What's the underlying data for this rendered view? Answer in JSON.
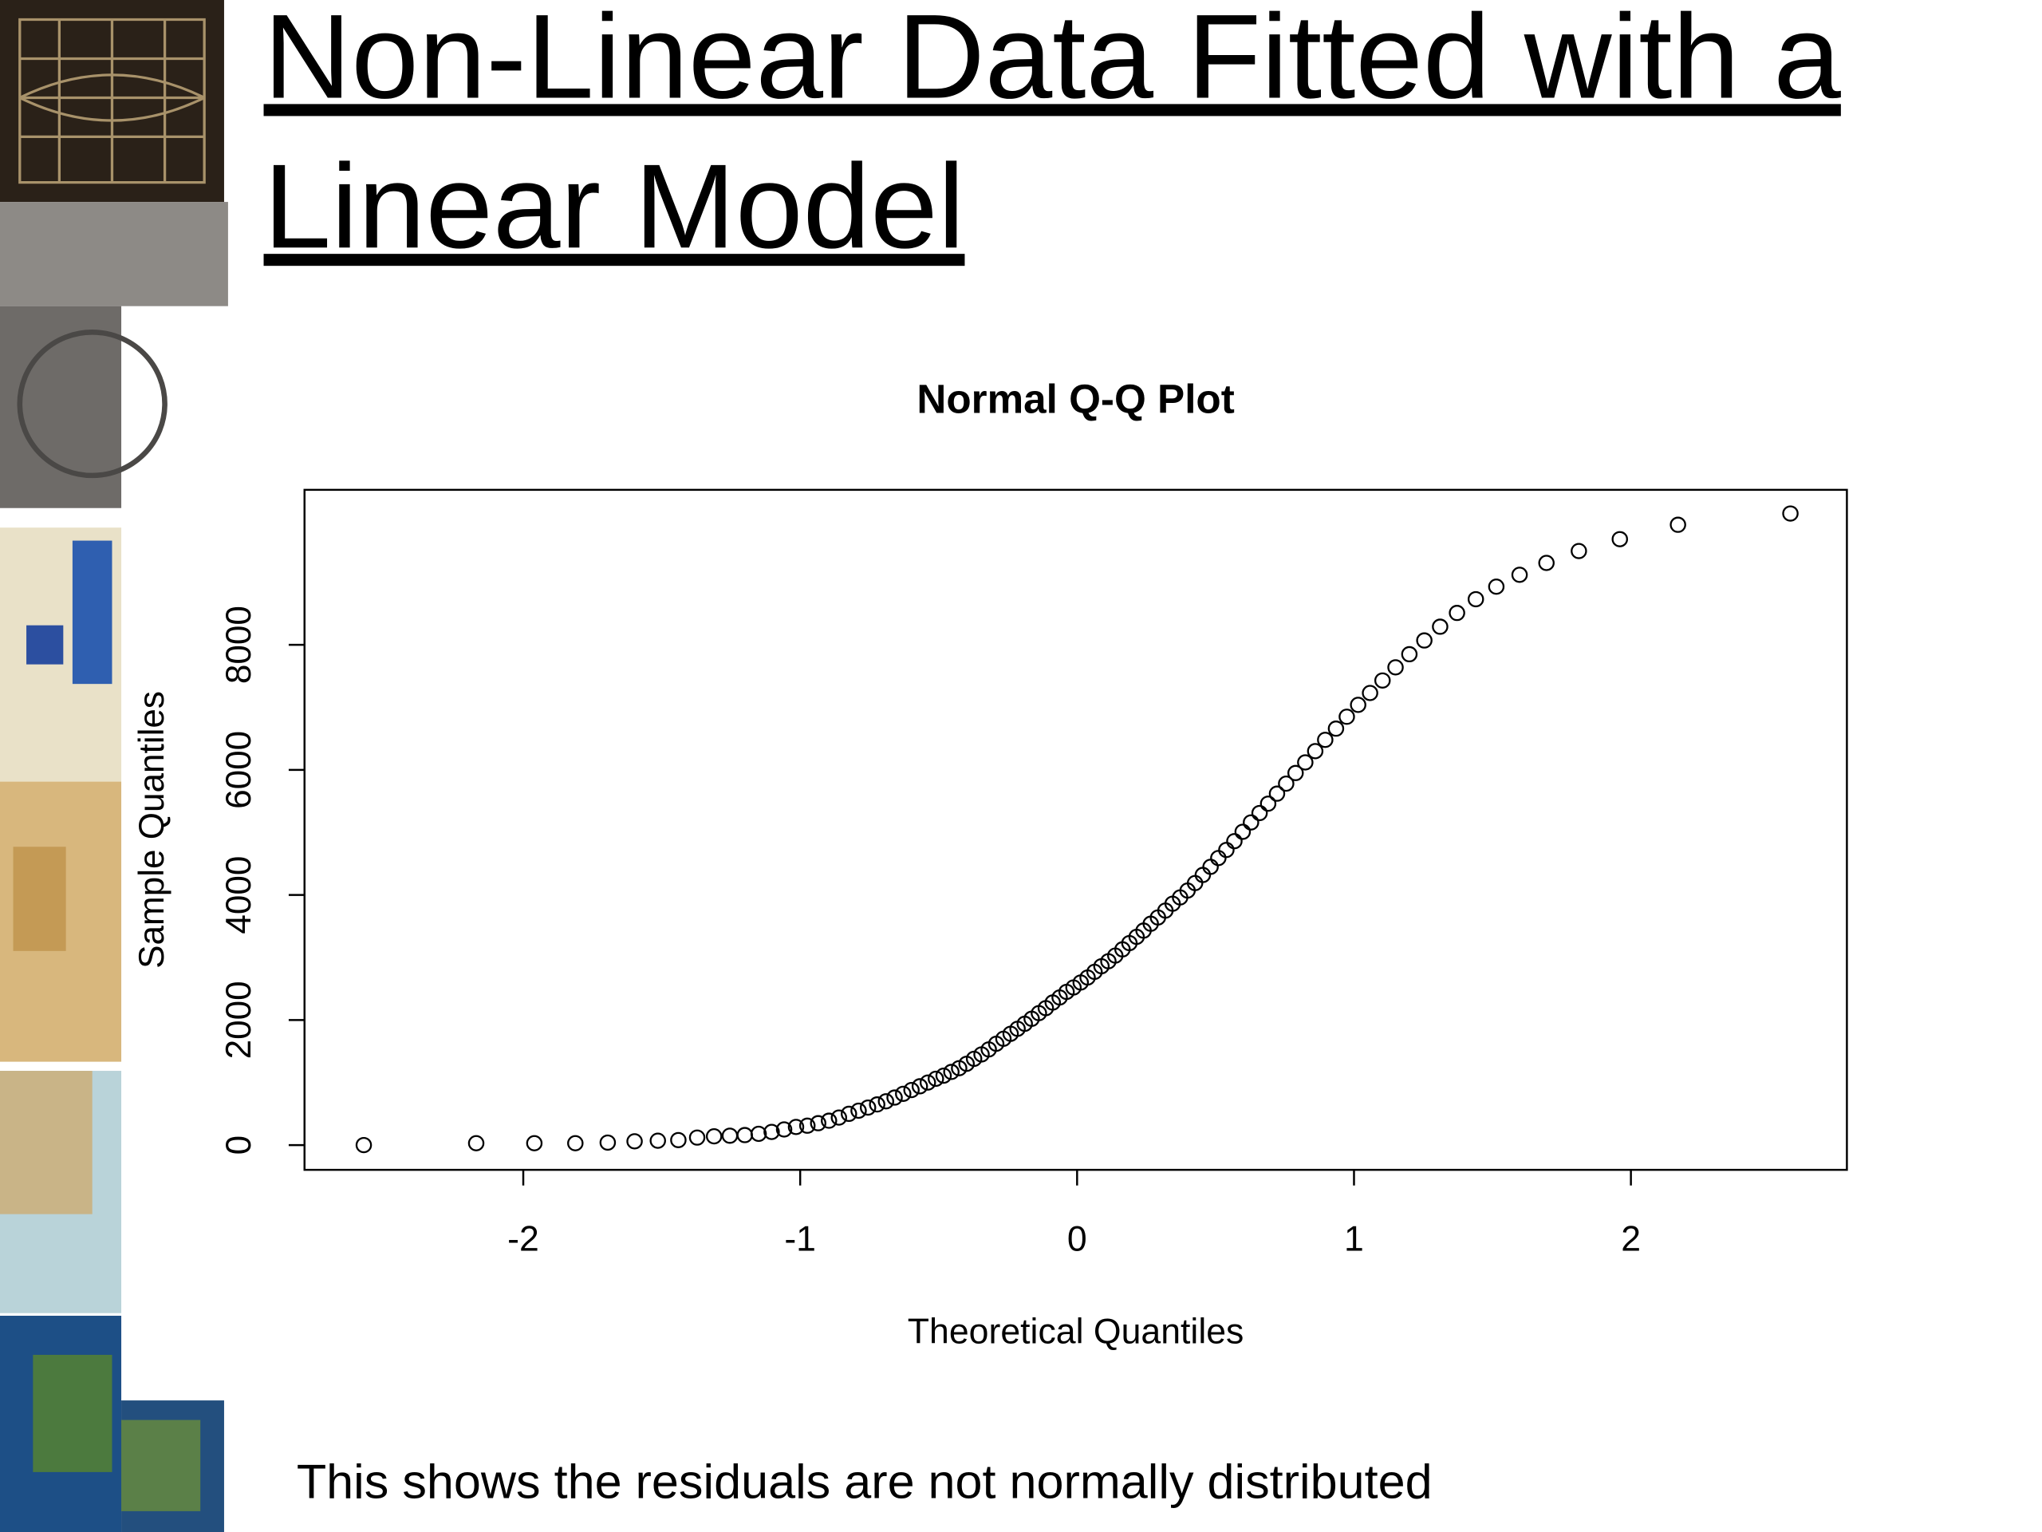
{
  "header": {
    "title_lines": [
      "Non-Linear Data Fitted with a",
      "Linear Model"
    ]
  },
  "chart_data": {
    "type": "scatter",
    "title": "Normal Q-Q Plot",
    "xlabel": "Theoretical Quantiles",
    "ylabel": "Sample Quantiles",
    "color": "#000000",
    "marker": "open-circle",
    "x": [
      -2.576,
      -2.17,
      -1.96,
      -1.812,
      -1.695,
      -1.598,
      -1.514,
      -1.44,
      -1.372,
      -1.311,
      -1.254,
      -1.2,
      -1.15,
      -1.103,
      -1.058,
      -1.015,
      -0.974,
      -0.935,
      -0.896,
      -0.86,
      -0.824,
      -0.789,
      -0.755,
      -0.722,
      -0.69,
      -0.659,
      -0.628,
      -0.598,
      -0.568,
      -0.539,
      -0.51,
      -0.482,
      -0.454,
      -0.426,
      -0.399,
      -0.372,
      -0.345,
      -0.319,
      -0.292,
      -0.266,
      -0.24,
      -0.215,
      -0.189,
      -0.164,
      -0.138,
      -0.113,
      -0.088,
      -0.063,
      -0.038,
      -0.013,
      0.013,
      0.038,
      0.063,
      0.088,
      0.113,
      0.138,
      0.164,
      0.189,
      0.215,
      0.24,
      0.266,
      0.292,
      0.319,
      0.345,
      0.372,
      0.399,
      0.426,
      0.454,
      0.482,
      0.51,
      0.539,
      0.568,
      0.598,
      0.628,
      0.659,
      0.69,
      0.722,
      0.755,
      0.789,
      0.824,
      0.86,
      0.896,
      0.935,
      0.974,
      1.015,
      1.058,
      1.103,
      1.15,
      1.2,
      1.254,
      1.311,
      1.372,
      1.44,
      1.514,
      1.598,
      1.695,
      1.812,
      1.96,
      2.17,
      2.576
    ],
    "values": [
      0,
      30,
      30,
      30,
      40,
      60,
      70,
      80,
      120,
      140,
      150,
      160,
      180,
      210,
      250,
      290,
      310,
      350,
      390,
      440,
      500,
      550,
      600,
      650,
      700,
      760,
      820,
      880,
      940,
      1000,
      1060,
      1110,
      1170,
      1230,
      1300,
      1380,
      1450,
      1530,
      1620,
      1700,
      1780,
      1860,
      1940,
      2020,
      2110,
      2190,
      2280,
      2360,
      2450,
      2520,
      2600,
      2680,
      2770,
      2860,
      2940,
      3030,
      3130,
      3230,
      3330,
      3430,
      3540,
      3640,
      3750,
      3860,
      3960,
      4070,
      4190,
      4320,
      4450,
      4590,
      4720,
      4860,
      5010,
      5160,
      5310,
      5460,
      5620,
      5780,
      5950,
      6120,
      6300,
      6480,
      6660,
      6850,
      7040,
      7230,
      7430,
      7640,
      7850,
      8070,
      8290,
      8510,
      8730,
      8930,
      9120,
      9310,
      9500,
      9690,
      9920,
      10100
    ],
    "xlim": [
      -2.79,
      2.78
    ],
    "ylim": [
      -396,
      10479
    ],
    "xticks": [
      -2,
      -1,
      0,
      1,
      2
    ],
    "yticks": [
      0,
      2000,
      4000,
      6000,
      8000
    ]
  },
  "caption": "This shows the residuals are not normally distributed"
}
